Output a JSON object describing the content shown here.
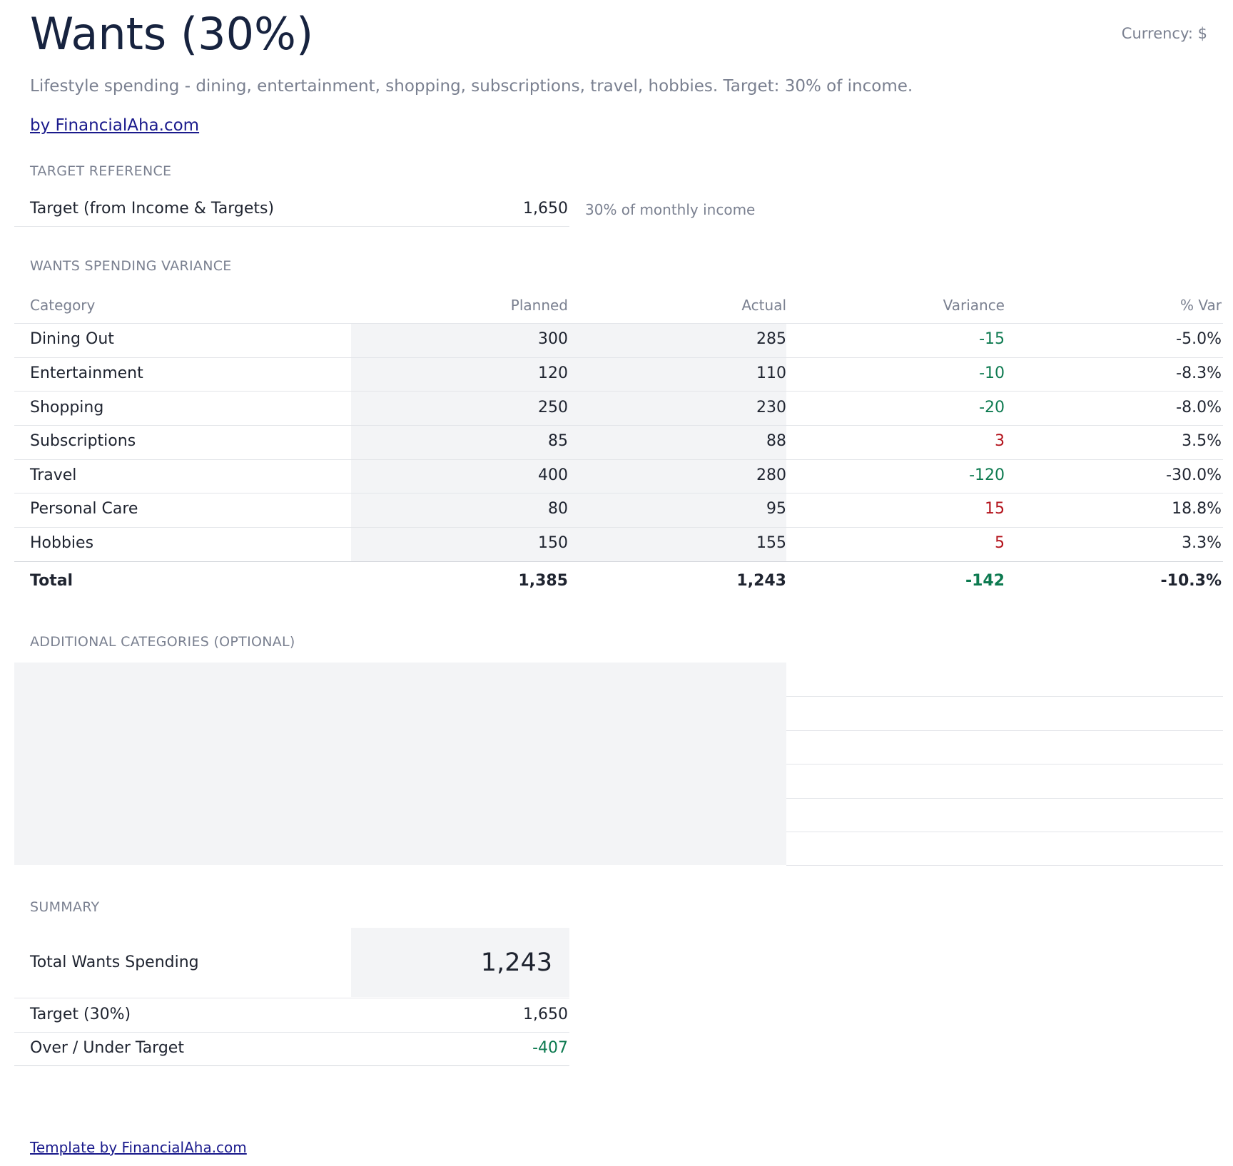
{
  "header": {
    "title": "Wants (30%)",
    "currency": "Currency: $",
    "subtitle": "Lifestyle spending - dining, entertainment, shopping, subscriptions, travel, hobbies. Target: 30% of income.",
    "by_link": "by FinancialAha.com"
  },
  "target_reference": {
    "section_label": "TARGET REFERENCE",
    "label": "Target (from Income & Targets)",
    "value": "1,650",
    "note": "30% of monthly income"
  },
  "variance": {
    "section_label": "WANTS SPENDING VARIANCE",
    "columns": [
      "Category",
      "Planned",
      "Actual",
      "Variance",
      "% Var"
    ],
    "rows": [
      {
        "category": "Dining Out",
        "planned": "300",
        "actual": "285",
        "variance": "-15",
        "pct": "-5.0%"
      },
      {
        "category": "Entertainment",
        "planned": "120",
        "actual": "110",
        "variance": "-10",
        "pct": "-8.3%"
      },
      {
        "category": "Shopping",
        "planned": "250",
        "actual": "230",
        "variance": "-20",
        "pct": "-8.0%"
      },
      {
        "category": "Subscriptions",
        "planned": "85",
        "actual": "88",
        "variance": "3",
        "pct": "3.5%"
      },
      {
        "category": "Travel",
        "planned": "400",
        "actual": "280",
        "variance": "-120",
        "pct": "-30.0%"
      },
      {
        "category": "Personal Care",
        "planned": "80",
        "actual": "95",
        "variance": "15",
        "pct": "18.8%"
      },
      {
        "category": "Hobbies",
        "planned": "150",
        "actual": "155",
        "variance": "5",
        "pct": "3.3%"
      }
    ],
    "total": {
      "category": "Total",
      "planned": "1,385",
      "actual": "1,243",
      "variance": "-142",
      "pct": "-10.3%"
    }
  },
  "additional": {
    "section_label": "ADDITIONAL CATEGORIES (OPTIONAL)"
  },
  "summary": {
    "section_label": "SUMMARY",
    "total_label": "Total Wants Spending",
    "total_value": "1,243",
    "target_label": "Target (30%)",
    "target_value": "1,650",
    "over_under_label": "Over / Under Target",
    "over_under_value": "-407"
  },
  "footer": {
    "link": "Template by FinancialAha.com"
  },
  "colors": {
    "under_budget": "#0d7a50",
    "over_budget": "#b3121b",
    "input_shade": "#f3f4f6"
  }
}
